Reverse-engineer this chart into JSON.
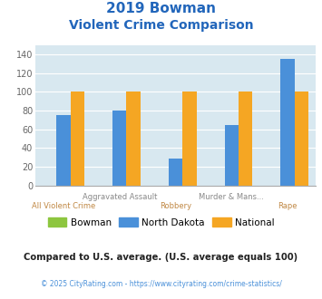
{
  "title_line1": "2019 Bowman",
  "title_line2": "Violent Crime Comparison",
  "title_color": "#2266bb",
  "categories": [
    "All Violent Crime",
    "Aggravated Assault",
    "Robbery",
    "Murder & Mans...",
    "Rape"
  ],
  "row1_labels": [
    "Aggravated Assault",
    "Murder & Mans..."
  ],
  "row1_indices": [
    1,
    3
  ],
  "row2_labels": [
    "All Violent Crime",
    "Robbery",
    "Rape"
  ],
  "row2_indices": [
    0,
    2,
    4
  ],
  "row1_color": "#888888",
  "row2_color": "#c08844",
  "series": {
    "Bowman": [
      0,
      0,
      0,
      0,
      0
    ],
    "North Dakota": [
      75,
      80,
      29,
      64,
      135
    ],
    "National": [
      100,
      100,
      100,
      100,
      100
    ]
  },
  "colors": {
    "Bowman": "#8dc63f",
    "North Dakota": "#4a90d9",
    "National": "#f5a623"
  },
  "ylim": [
    0,
    150
  ],
  "yticks": [
    0,
    20,
    40,
    60,
    80,
    100,
    120,
    140
  ],
  "bg_color": "#d8e8f0",
  "grid_color": "#ffffff",
  "bar_width": 0.25,
  "footer_text": "Compared to U.S. average. (U.S. average equals 100)",
  "footer_color": "#222222",
  "copyright_text": "© 2025 CityRating.com - https://www.cityrating.com/crime-statistics/",
  "copyright_color": "#4a90d9"
}
